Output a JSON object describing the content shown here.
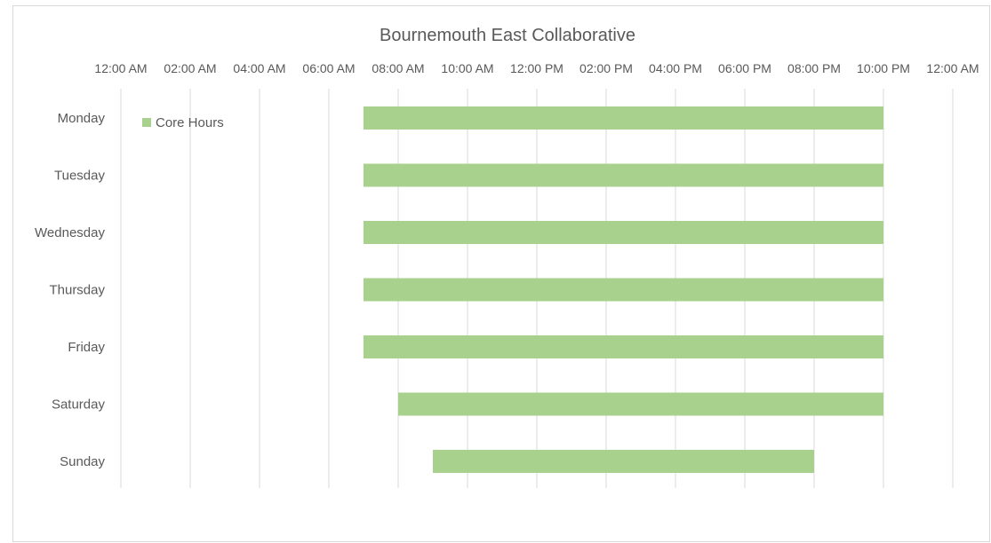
{
  "chart_data": {
    "type": "bar",
    "orientation": "horizontal-floating",
    "title": "Bournemouth East Collaborative",
    "xaxis": {
      "position": "top",
      "range_hours": [
        0,
        24
      ],
      "tick_labels": [
        "12:00 AM",
        "02:00 AM",
        "04:00 AM",
        "06:00 AM",
        "08:00 AM",
        "10:00 AM",
        "12:00 PM",
        "02:00 PM",
        "04:00 PM",
        "06:00 PM",
        "08:00 PM",
        "10:00 PM",
        "12:00 AM"
      ],
      "gridlines": true
    },
    "categories": [
      "Monday",
      "Tuesday",
      "Wednesday",
      "Thursday",
      "Friday",
      "Saturday",
      "Sunday"
    ],
    "series": [
      {
        "name": "Core Hours",
        "color": "#a9d18e",
        "start": [
          "07:00",
          "07:00",
          "07:00",
          "07:00",
          "07:00",
          "08:00",
          "09:00"
        ],
        "end": [
          "22:00",
          "22:00",
          "22:00",
          "22:00",
          "22:00",
          "22:00",
          "20:00"
        ]
      }
    ],
    "legend": "top-left"
  }
}
